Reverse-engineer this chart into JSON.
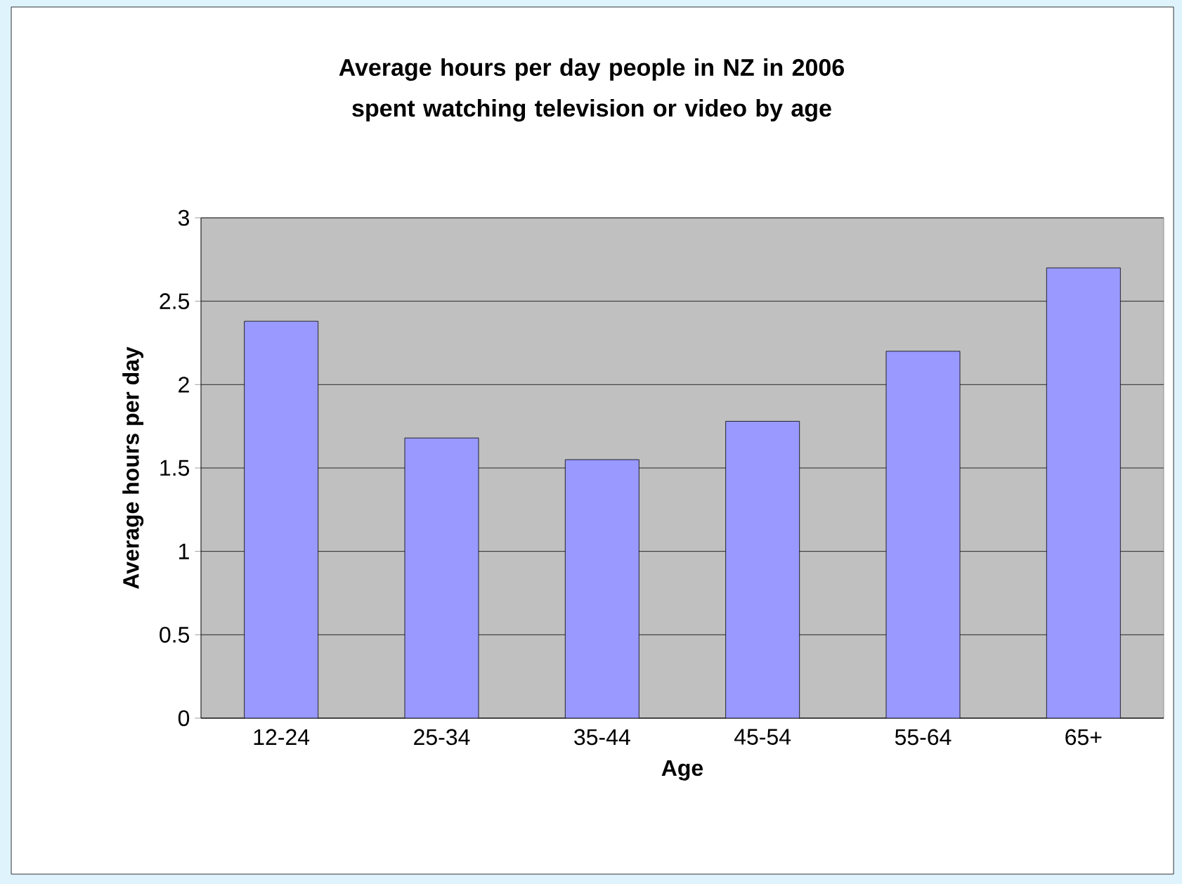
{
  "chart_data": {
    "type": "bar",
    "title": "Average hours per day people in NZ in 2006 spent watching television or video by age",
    "xlabel": "Age",
    "ylabel": "Average hours per day",
    "categories": [
      "12-24",
      "25-34",
      "35-44",
      "45-54",
      "55-64",
      "65+"
    ],
    "values": [
      2.38,
      1.68,
      1.55,
      1.78,
      2.2,
      2.7
    ],
    "color": "#9999ff",
    "ylim": [
      0,
      3
    ],
    "yticks": [
      0,
      0.5,
      1,
      1.5,
      2,
      2.5,
      3
    ],
    "grid": "y"
  }
}
